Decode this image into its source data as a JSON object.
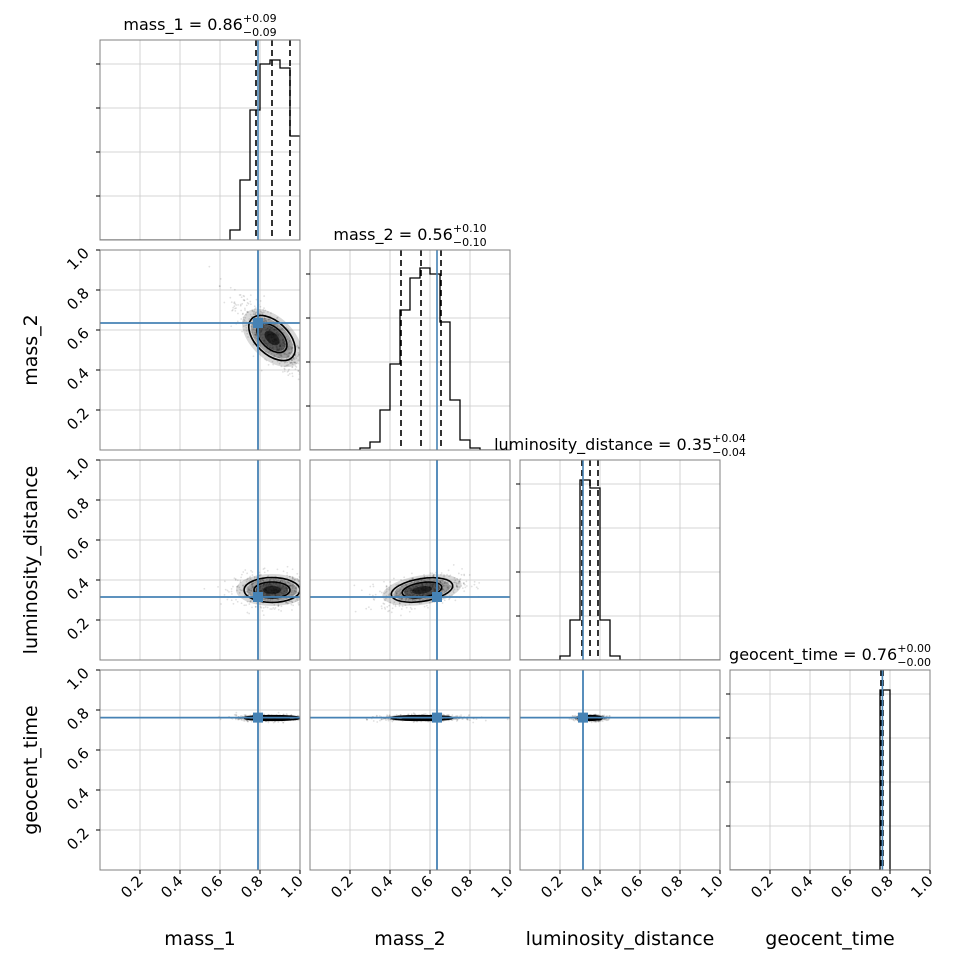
{
  "chart_data": {
    "type": "corner",
    "parameters": [
      "mass_1",
      "mass_2",
      "luminosity_distance",
      "geocent_time"
    ],
    "axis_labels": [
      "mass_1",
      "mass_2",
      "luminosity_distance",
      "geocent_time"
    ],
    "axis_range": [
      0,
      1
    ],
    "tick_labels": [
      "0.2",
      "0.4",
      "0.6",
      "0.8",
      "1.0"
    ],
    "tick_values": [
      0.2,
      0.4,
      0.6,
      0.8,
      1.0
    ],
    "grid": true,
    "colors": {
      "truth": "#4682b4",
      "hist": "#000000",
      "grid": "#c8c8c8",
      "frame": "#808080"
    },
    "titles": [
      {
        "param": "mass_1",
        "prefix": "mass_1 = ",
        "median": "0.86",
        "plus": "+0.09",
        "minus": "−0.09"
      },
      {
        "param": "mass_2",
        "prefix": "mass_2 = ",
        "median": "0.56",
        "plus": "+0.10",
        "minus": "−0.10"
      },
      {
        "param": "luminosity_distance",
        "prefix": "luminosity_distance = ",
        "median": "0.35",
        "plus": "+0.04",
        "minus": "−0.04"
      },
      {
        "param": "geocent_time",
        "prefix": "geocent_time = ",
        "median": "0.76",
        "plus": "+0.00",
        "minus": "−0.00"
      }
    ],
    "truths": [
      0.79,
      0.635,
      0.315,
      0.762
    ],
    "quantiles": [
      [
        0.78,
        0.86,
        0.95
      ],
      [
        0.455,
        0.555,
        0.655
      ],
      [
        0.31,
        0.35,
        0.39
      ],
      [
        0.755,
        0.76,
        0.765
      ]
    ],
    "histograms": [
      {
        "bin_edges": [
          0.65,
          0.7,
          0.75,
          0.8,
          0.85,
          0.9,
          0.95,
          1.0
        ],
        "values": [
          0.05,
          0.3,
          0.65,
          0.88,
          0.9,
          0.86,
          0.52
        ]
      },
      {
        "bin_edges": [
          0.25,
          0.3,
          0.35,
          0.4,
          0.45,
          0.5,
          0.55,
          0.6,
          0.65,
          0.7,
          0.75,
          0.8,
          0.85
        ],
        "values": [
          0.01,
          0.04,
          0.2,
          0.43,
          0.7,
          0.86,
          0.91,
          0.88,
          0.64,
          0.25,
          0.05,
          0.01
        ]
      },
      {
        "bin_edges": [
          0.2,
          0.25,
          0.3,
          0.35,
          0.4,
          0.45,
          0.5,
          0.55
        ],
        "values": [
          0.02,
          0.2,
          0.9,
          0.86,
          0.2,
          0.02,
          0.0
        ]
      },
      {
        "bin_edges": [
          0.75,
          0.8
        ],
        "values": [
          0.9
        ]
      }
    ],
    "density_blobs": [
      {
        "row": 1,
        "col": 0,
        "x": 0.86,
        "y": 0.56,
        "sx": 0.09,
        "sy": 0.1,
        "rho": -0.85
      },
      {
        "row": 2,
        "col": 0,
        "x": 0.86,
        "y": 0.35,
        "sx": 0.09,
        "sy": 0.04,
        "rho": 0.0
      },
      {
        "row": 2,
        "col": 1,
        "x": 0.56,
        "y": 0.35,
        "sx": 0.1,
        "sy": 0.04,
        "rho": 0.4
      },
      {
        "row": 3,
        "col": 0,
        "x": 0.86,
        "y": 0.76,
        "sx": 0.09,
        "sy": 0.006,
        "rho": 0.0
      },
      {
        "row": 3,
        "col": 1,
        "x": 0.56,
        "y": 0.76,
        "sx": 0.1,
        "sy": 0.006,
        "rho": 0.0
      },
      {
        "row": 3,
        "col": 2,
        "x": 0.35,
        "y": 0.76,
        "sx": 0.04,
        "sy": 0.006,
        "rho": 0.0
      }
    ]
  }
}
